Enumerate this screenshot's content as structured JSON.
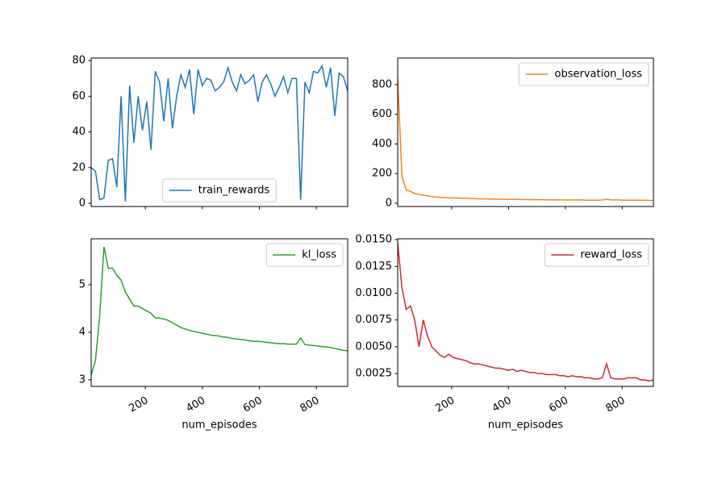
{
  "chart_data": [
    {
      "type": "line",
      "legend": "lower center",
      "x": [
        10,
        25,
        40,
        55,
        70,
        85,
        100,
        115,
        130,
        145,
        160,
        175,
        190,
        205,
        220,
        235,
        250,
        265,
        280,
        295,
        310,
        325,
        340,
        355,
        370,
        385,
        400,
        415,
        430,
        445,
        460,
        475,
        490,
        505,
        520,
        535,
        550,
        565,
        580,
        595,
        610,
        625,
        640,
        655,
        670,
        685,
        700,
        715,
        730,
        745,
        760,
        775,
        790,
        805,
        820,
        835,
        850,
        865,
        880,
        895,
        910
      ],
      "xlim": [
        10,
        910
      ],
      "xticks": [
        200,
        400,
        600,
        800
      ],
      "ylim": [
        -1.8,
        81.4
      ],
      "yticks": [
        0,
        20,
        40,
        60,
        80
      ],
      "series": [
        {
          "name": "train_rewards",
          "color": "#1f77b4",
          "values": [
            20,
            18,
            2,
            3,
            24,
            25,
            9,
            60,
            1,
            66,
            34,
            60,
            41,
            57,
            30,
            74,
            68,
            46,
            70,
            42,
            60,
            72,
            65,
            75,
            50,
            75,
            66,
            70,
            69,
            63,
            65,
            68,
            76,
            68,
            63,
            72,
            67,
            69,
            72,
            57,
            68,
            72,
            67,
            60,
            65,
            71,
            62,
            70,
            70,
            2,
            68,
            62,
            74,
            73,
            77,
            65,
            76,
            49,
            73,
            71,
            63
          ]
        }
      ]
    },
    {
      "type": "line",
      "legend": "upper right",
      "x": [
        10,
        25,
        40,
        55,
        70,
        85,
        100,
        115,
        130,
        145,
        160,
        175,
        190,
        205,
        220,
        235,
        250,
        265,
        280,
        295,
        310,
        325,
        340,
        355,
        370,
        385,
        400,
        415,
        430,
        445,
        460,
        475,
        490,
        505,
        520,
        535,
        550,
        565,
        580,
        595,
        610,
        625,
        640,
        655,
        670,
        685,
        700,
        715,
        730,
        745,
        760,
        775,
        790,
        805,
        820,
        835,
        850,
        865,
        880,
        895,
        910
      ],
      "xlim": [
        10,
        910
      ],
      "xticks": [
        200,
        400,
        600,
        800
      ],
      "ylim": [
        -22,
        979
      ],
      "yticks": [
        0,
        200,
        400,
        600,
        800
      ],
      "series": [
        {
          "name": "observation_loss",
          "color": "#ff7f0e",
          "values": [
            850,
            180,
            90,
            80,
            65,
            60,
            55,
            50,
            45,
            42,
            40,
            38,
            37,
            36,
            35,
            34,
            33,
            32,
            31,
            30,
            30,
            29,
            28,
            28,
            27,
            27,
            26,
            26,
            26,
            25,
            25,
            25,
            24,
            24,
            24,
            23,
            23,
            23,
            23,
            22,
            22,
            22,
            22,
            22,
            21,
            21,
            21,
            21,
            22,
            27,
            23,
            22,
            22,
            21,
            21,
            21,
            20,
            20,
            20,
            19,
            19
          ]
        }
      ]
    },
    {
      "type": "line",
      "legend": "upper right",
      "xlabel": "num_episodes",
      "x": [
        10,
        25,
        40,
        55,
        70,
        85,
        100,
        115,
        130,
        145,
        160,
        175,
        190,
        205,
        220,
        235,
        250,
        265,
        280,
        295,
        310,
        325,
        340,
        355,
        370,
        385,
        400,
        415,
        430,
        445,
        460,
        475,
        490,
        505,
        520,
        535,
        550,
        565,
        580,
        595,
        610,
        625,
        640,
        655,
        670,
        685,
        700,
        715,
        730,
        745,
        760,
        775,
        790,
        805,
        820,
        835,
        850,
        865,
        880,
        895,
        910
      ],
      "xlim": [
        10,
        910
      ],
      "xticks": [
        200,
        400,
        600,
        800
      ],
      "ylim": [
        2.86,
        5.97
      ],
      "yticks": [
        3,
        4,
        5
      ],
      "series": [
        {
          "name": "kl_loss",
          "color": "#2ca02c",
          "values": [
            3.1,
            3.4,
            4.35,
            5.8,
            5.35,
            5.35,
            5.2,
            5.1,
            4.85,
            4.7,
            4.55,
            4.55,
            4.5,
            4.45,
            4.4,
            4.3,
            4.3,
            4.28,
            4.25,
            4.2,
            4.15,
            4.1,
            4.07,
            4.04,
            4.02,
            4.0,
            3.98,
            3.96,
            3.94,
            3.93,
            3.92,
            3.9,
            3.89,
            3.87,
            3.86,
            3.85,
            3.84,
            3.82,
            3.81,
            3.81,
            3.8,
            3.79,
            3.78,
            3.77,
            3.76,
            3.76,
            3.75,
            3.75,
            3.75,
            3.88,
            3.74,
            3.73,
            3.72,
            3.71,
            3.7,
            3.69,
            3.68,
            3.66,
            3.64,
            3.62,
            3.61
          ]
        }
      ]
    },
    {
      "type": "line",
      "legend": "upper right",
      "xlabel": "num_episodes",
      "x": [
        10,
        25,
        40,
        55,
        70,
        85,
        100,
        115,
        130,
        145,
        160,
        175,
        190,
        205,
        220,
        235,
        250,
        265,
        280,
        295,
        310,
        325,
        340,
        355,
        370,
        385,
        400,
        415,
        430,
        445,
        460,
        475,
        490,
        505,
        520,
        535,
        550,
        565,
        580,
        595,
        610,
        625,
        640,
        655,
        670,
        685,
        700,
        715,
        730,
        745,
        760,
        775,
        790,
        805,
        820,
        835,
        850,
        865,
        880,
        895,
        910
      ],
      "xlim": [
        10,
        910
      ],
      "xticks": [
        200,
        400,
        600,
        800
      ],
      "ylim": [
        0.0013,
        0.01508
      ],
      "yticks": [
        0.0025,
        {
          "value": 0.005,
          "label": "0.0050"
        },
        0.0075,
        {
          "value": 0.01,
          "label": "0.0100"
        },
        0.0125,
        {
          "value": 0.015,
          "label": "0.0150"
        }
      ],
      "series": [
        {
          "name": "reward_loss",
          "color": "#d62728",
          "values": [
            0.0147,
            0.0105,
            0.0085,
            0.0088,
            0.0075,
            0.005,
            0.0075,
            0.006,
            0.005,
            0.0046,
            0.0042,
            0.004,
            0.0043,
            0.004,
            0.0039,
            0.0038,
            0.0037,
            0.0035,
            0.0034,
            0.0034,
            0.0033,
            0.0032,
            0.0031,
            0.003,
            0.003,
            0.0029,
            0.0028,
            0.0029,
            0.0027,
            0.0028,
            0.0027,
            0.0026,
            0.0026,
            0.0025,
            0.0025,
            0.0024,
            0.0024,
            0.0024,
            0.0023,
            0.0023,
            0.0022,
            0.0023,
            0.0022,
            0.0022,
            0.0021,
            0.0021,
            0.002,
            0.002,
            0.0021,
            0.0034,
            0.0021,
            0.002,
            0.002,
            0.002,
            0.0021,
            0.0021,
            0.0021,
            0.0019,
            0.0019,
            0.0018,
            0.0019
          ]
        }
      ]
    }
  ]
}
